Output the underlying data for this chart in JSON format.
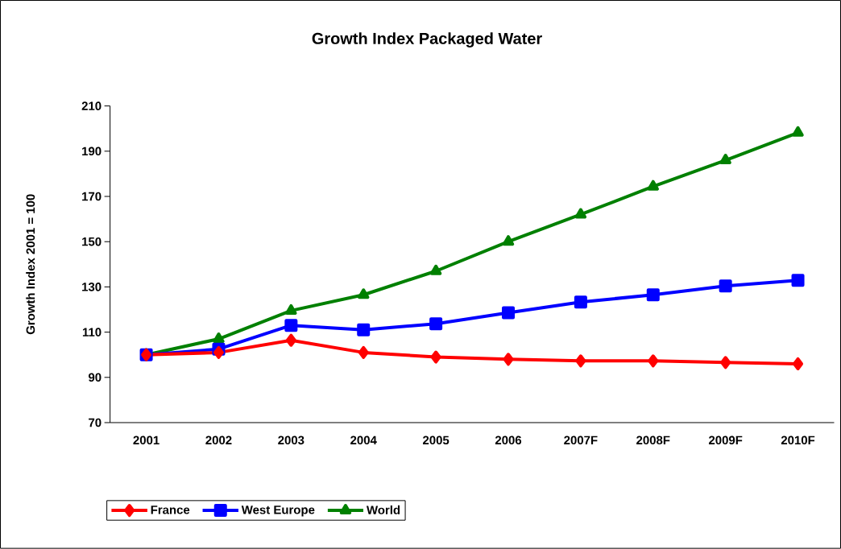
{
  "chart_data": {
    "type": "line",
    "title": "Growth Index Packaged Water",
    "ylabel": "Growth Index 2001 = 100",
    "categories": [
      "2001",
      "2002",
      "2003",
      "2004",
      "2005",
      "2006",
      "2007F",
      "2008F",
      "2009F",
      "2010F"
    ],
    "series": [
      {
        "name": "France",
        "color": "#ff0000",
        "marker": "diamond",
        "values": [
          100,
          101,
          106.4,
          101,
          99,
          98,
          97.3,
          97.3,
          96.6,
          96
        ]
      },
      {
        "name": "West Europe",
        "color": "#0000ff",
        "marker": "square",
        "values": [
          100,
          102.5,
          113,
          111,
          113.7,
          118.6,
          123.3,
          126.5,
          130.4,
          132.9
        ]
      },
      {
        "name": "World",
        "color": "#008000",
        "marker": "triangle",
        "values": [
          100,
          107,
          119.5,
          126.5,
          137,
          150,
          162,
          174.4,
          186,
          198.2
        ]
      }
    ],
    "ylim": [
      70,
      210
    ],
    "yticks": [
      70,
      90,
      110,
      130,
      150,
      170,
      190,
      210
    ],
    "grid": false,
    "legend": "bottom",
    "line_style": "solid"
  }
}
